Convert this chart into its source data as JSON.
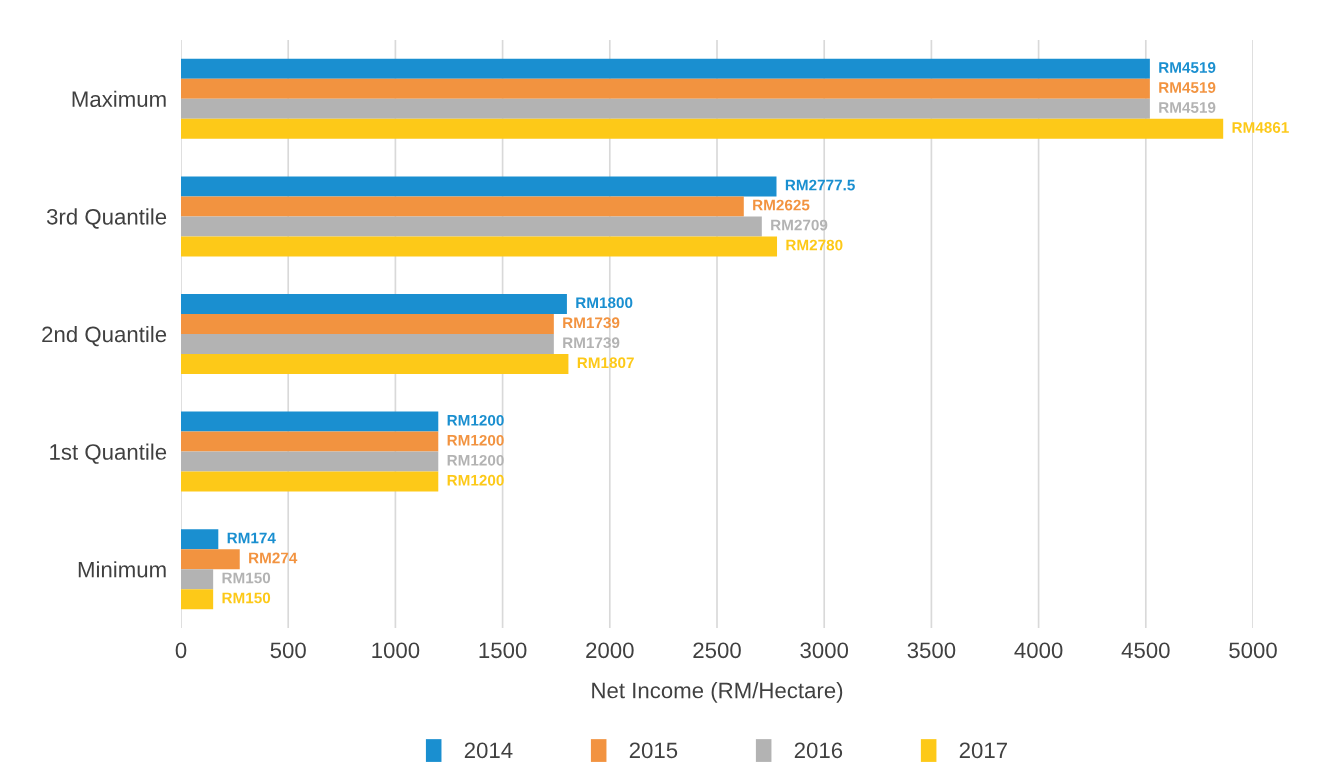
{
  "chart_data": {
    "type": "bar",
    "orientation": "horizontal",
    "categories": [
      "Maximum",
      "3rd Quantile",
      "2nd Quantile",
      "1st Quantile",
      "Minimum"
    ],
    "xlabel": "Net Income (RM/Hectare)",
    "xlim": [
      0,
      5000
    ],
    "xticks": [
      0,
      500,
      1000,
      1500,
      2000,
      2500,
      3000,
      3500,
      4000,
      4500,
      5000
    ],
    "grid": "x",
    "legend": "bottom",
    "series": [
      {
        "name": "2014",
        "color": "#1a8fd0",
        "values": [
          4519,
          2777.5,
          1800,
          1200,
          174
        ],
        "value_labels": [
          "RM4519",
          "RM2777.5",
          "RM1800",
          "RM1200",
          "RM174"
        ]
      },
      {
        "name": "2015",
        "color": "#f29340",
        "values": [
          4519,
          2625,
          1739,
          1200,
          274
        ],
        "value_labels": [
          "RM4519",
          "RM2625",
          "RM1739",
          "RM1200",
          "RM274"
        ]
      },
      {
        "name": "2016",
        "color": "#b3b3b3",
        "values": [
          4519,
          2709,
          1739,
          1200,
          150
        ],
        "value_labels": [
          "RM4519",
          "RM2709",
          "RM1739",
          "RM1200",
          "RM150"
        ]
      },
      {
        "name": "2017",
        "color": "#fdc918",
        "values": [
          4861,
          2780,
          1807,
          1200,
          150
        ],
        "value_labels": [
          "RM4861",
          "RM2780",
          "RM1807",
          "RM1200",
          "RM150"
        ]
      }
    ]
  }
}
